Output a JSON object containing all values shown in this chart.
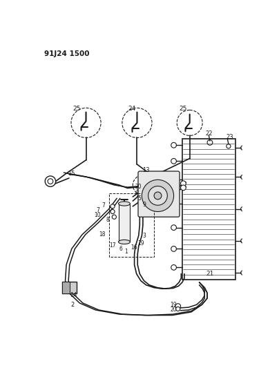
{
  "title": "91J24 1500",
  "bg": "#ffffff",
  "lc": "#1a1a1a",
  "figsize": [
    3.91,
    5.33
  ],
  "dpi": 100,
  "xlim": [
    0,
    391
  ],
  "ylim": [
    0,
    533
  ]
}
